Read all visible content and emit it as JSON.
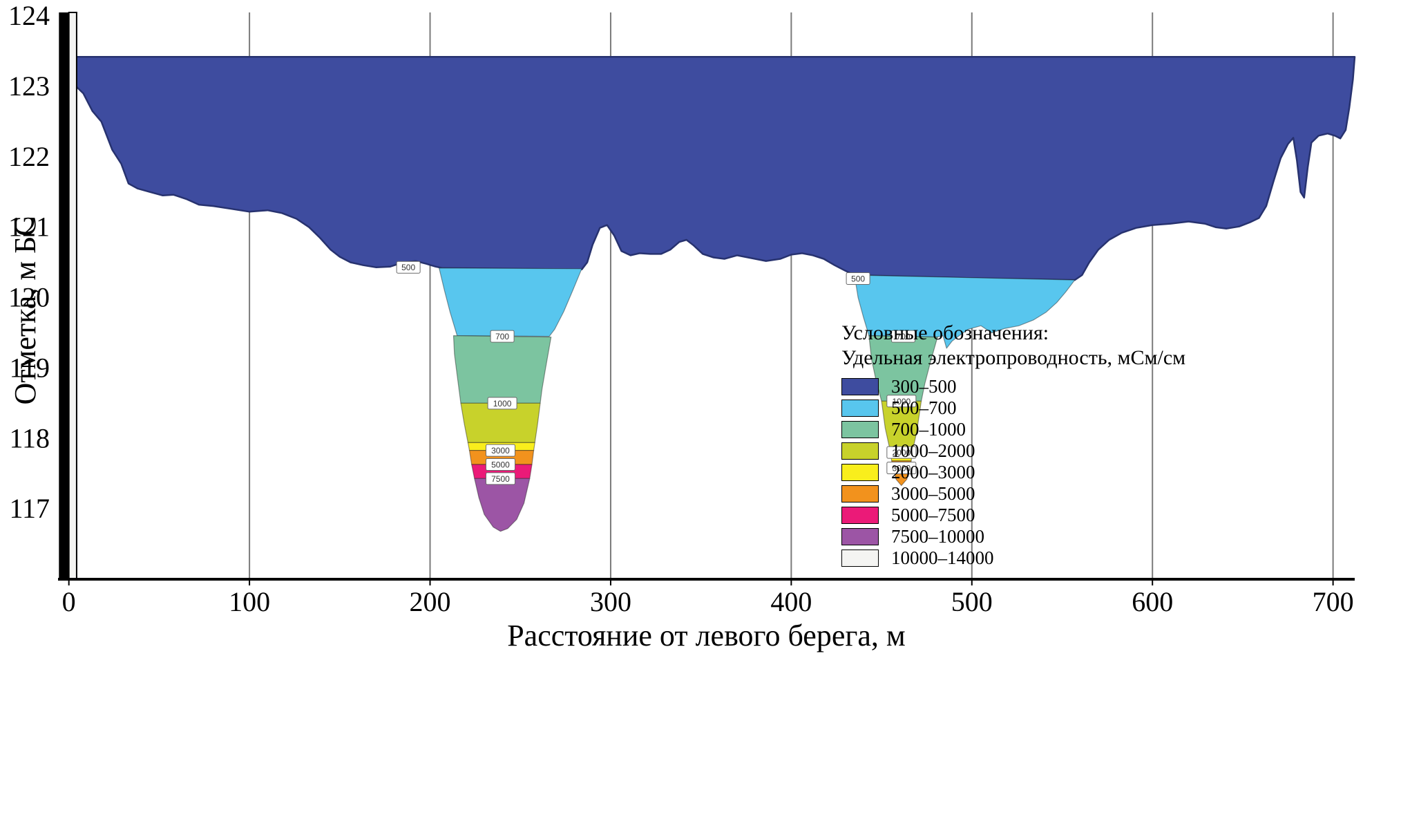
{
  "chart_data": {
    "type": "area",
    "title": "",
    "xlabel": "Расстояние от левого берега, м",
    "ylabel": "Отметка, м БС",
    "xlim": [
      -6,
      712
    ],
    "ylim": [
      116.0,
      124.05
    ],
    "x_ticks": [
      0,
      100,
      200,
      300,
      400,
      500,
      600,
      700
    ],
    "y_ticks": [
      117,
      118,
      119,
      120,
      121,
      122,
      123,
      124
    ],
    "grid": "vertical",
    "water_surface_elevation": 123.42,
    "legend": {
      "title_line1": "Условные обозначения:",
      "title_line2": "Удельная электропроводность, мСм/см",
      "entries": [
        {
          "label": "300–500",
          "color": "#3E4C9F"
        },
        {
          "label": "500–700",
          "color": "#58C6EE"
        },
        {
          "label": "700–1000",
          "color": "#7CC4A0"
        },
        {
          "label": "1000–2000",
          "color": "#C8D22B"
        },
        {
          "label": "2000–3000",
          "color": "#F9EE1C"
        },
        {
          "label": "3000–5000",
          "color": "#F2921D"
        },
        {
          "label": "5000–7500",
          "color": "#EB1A78"
        },
        {
          "label": "7500–10000",
          "color": "#9C55A5"
        },
        {
          "label": "10000–14000",
          "color": "#F4F4F2"
        }
      ]
    },
    "riverbed_profile": [
      [
        0,
        123.42
      ],
      [
        2,
        123.05
      ],
      [
        8,
        122.9
      ],
      [
        13,
        122.65
      ],
      [
        18,
        122.5
      ],
      [
        24,
        122.1
      ],
      [
        29,
        121.9
      ],
      [
        33,
        121.62
      ],
      [
        38,
        121.55
      ],
      [
        45,
        121.5
      ],
      [
        52,
        121.45
      ],
      [
        58,
        121.46
      ],
      [
        65,
        121.4
      ],
      [
        72,
        121.32
      ],
      [
        80,
        121.3
      ],
      [
        90,
        121.26
      ],
      [
        100,
        121.22
      ],
      [
        110,
        121.24
      ],
      [
        118,
        121.2
      ],
      [
        126,
        121.12
      ],
      [
        133,
        121.0
      ],
      [
        139,
        120.85
      ],
      [
        145,
        120.68
      ],
      [
        150,
        120.58
      ],
      [
        156,
        120.5
      ],
      [
        163,
        120.46
      ],
      [
        170,
        120.43
      ],
      [
        178,
        120.44
      ],
      [
        185,
        120.5
      ],
      [
        192,
        120.52
      ],
      [
        198,
        120.48
      ],
      [
        203,
        120.44
      ],
      [
        207,
        120.42
      ],
      [
        245,
        120.41
      ],
      [
        284,
        120.4
      ],
      [
        287,
        120.5
      ],
      [
        290,
        120.75
      ],
      [
        294,
        120.99
      ],
      [
        298,
        121.03
      ],
      [
        302,
        120.88
      ],
      [
        306,
        120.66
      ],
      [
        311,
        120.6
      ],
      [
        316,
        120.63
      ],
      [
        322,
        120.62
      ],
      [
        328,
        120.62
      ],
      [
        333,
        120.68
      ],
      [
        338,
        120.79
      ],
      [
        342,
        120.82
      ],
      [
        346,
        120.74
      ],
      [
        351,
        120.62
      ],
      [
        357,
        120.57
      ],
      [
        363,
        120.55
      ],
      [
        370,
        120.6
      ],
      [
        378,
        120.56
      ],
      [
        386,
        120.52
      ],
      [
        394,
        120.55
      ],
      [
        400,
        120.61
      ],
      [
        406,
        120.63
      ],
      [
        412,
        120.6
      ],
      [
        418,
        120.55
      ],
      [
        424,
        120.46
      ],
      [
        430,
        120.38
      ],
      [
        435,
        120.32
      ],
      [
        495,
        120.28
      ],
      [
        557,
        120.25
      ],
      [
        561,
        120.32
      ],
      [
        565,
        120.5
      ],
      [
        570,
        120.68
      ],
      [
        576,
        120.82
      ],
      [
        583,
        120.92
      ],
      [
        591,
        120.99
      ],
      [
        600,
        121.03
      ],
      [
        610,
        121.05
      ],
      [
        620,
        121.08
      ],
      [
        629,
        121.05
      ],
      [
        635,
        121.0
      ],
      [
        641,
        120.98
      ],
      [
        648,
        121.01
      ],
      [
        654,
        121.07
      ],
      [
        659,
        121.13
      ],
      [
        663,
        121.3
      ],
      [
        667,
        121.65
      ],
      [
        671,
        121.98
      ],
      [
        675,
        122.18
      ],
      [
        678,
        122.27
      ],
      [
        680,
        121.95
      ],
      [
        682,
        121.5
      ],
      [
        684,
        121.42
      ],
      [
        686,
        121.85
      ],
      [
        688,
        122.2
      ],
      [
        692,
        122.3
      ],
      [
        697,
        122.33
      ],
      [
        701,
        122.3
      ],
      [
        704,
        122.26
      ],
      [
        707,
        122.38
      ],
      [
        709,
        122.7
      ],
      [
        711,
        123.1
      ],
      [
        712,
        123.42
      ]
    ],
    "regions": [
      {
        "name": "pocket1-500-700",
        "color": 1,
        "points": [
          [
            205,
            120.42
          ],
          [
            284,
            120.41
          ],
          [
            279,
            120.1
          ],
          [
            274,
            119.8
          ],
          [
            269,
            119.55
          ],
          [
            266,
            119.45
          ],
          [
            215,
            119.46
          ],
          [
            211,
            119.8
          ],
          [
            208,
            120.1
          ]
        ]
      },
      {
        "name": "pocket1-700-1000",
        "color": 2,
        "points": [
          [
            213,
            119.46
          ],
          [
            267,
            119.44
          ],
          [
            264,
            119.0
          ],
          [
            262,
            118.7
          ],
          [
            261,
            118.5
          ],
          [
            217,
            118.5
          ],
          [
            215,
            118.9
          ],
          [
            213.5,
            119.2
          ]
        ]
      },
      {
        "name": "pocket1-1000-2000",
        "color": 3,
        "points": [
          [
            217,
            118.5
          ],
          [
            261,
            118.5
          ],
          [
            259.5,
            118.2
          ],
          [
            258,
            117.94
          ],
          [
            221,
            117.94
          ],
          [
            219,
            118.2
          ]
        ]
      },
      {
        "name": "pocket1-2000-3000",
        "color": 4,
        "points": [
          [
            221,
            117.94
          ],
          [
            258,
            117.94
          ],
          [
            257.4,
            117.83
          ],
          [
            221.8,
            117.83
          ]
        ]
      },
      {
        "name": "pocket1-3000-5000",
        "color": 5,
        "points": [
          [
            221.8,
            117.83
          ],
          [
            257.4,
            117.83
          ],
          [
            256.4,
            117.63
          ],
          [
            223,
            117.63
          ]
        ]
      },
      {
        "name": "pocket1-5000-7500",
        "color": 6,
        "points": [
          [
            223,
            117.63
          ],
          [
            256.4,
            117.63
          ],
          [
            255.2,
            117.43
          ],
          [
            224.6,
            117.43
          ]
        ]
      },
      {
        "name": "pocket1-7500-10000",
        "color": 7,
        "points": [
          [
            224.6,
            117.43
          ],
          [
            255.2,
            117.43
          ],
          [
            252,
            117.08
          ],
          [
            248,
            116.85
          ],
          [
            243,
            116.72
          ],
          [
            239,
            116.68
          ],
          [
            235,
            116.74
          ],
          [
            230,
            116.92
          ],
          [
            227,
            117.16
          ]
        ]
      },
      {
        "name": "pocket2-500-700",
        "color": 1,
        "points": [
          [
            435,
            120.32
          ],
          [
            557,
            120.25
          ],
          [
            552,
            120.08
          ],
          [
            547,
            119.93
          ],
          [
            541,
            119.79
          ],
          [
            534,
            119.68
          ],
          [
            526,
            119.6
          ],
          [
            518,
            119.56
          ],
          [
            511,
            119.5
          ],
          [
            505,
            119.6
          ],
          [
            498,
            119.55
          ],
          [
            493,
            119.46
          ],
          [
            489,
            119.38
          ],
          [
            486,
            119.28
          ],
          [
            484,
            119.46
          ],
          [
            481,
            119.44
          ],
          [
            443,
            119.46
          ],
          [
            440,
            119.72
          ],
          [
            437,
            120.0
          ]
        ]
      },
      {
        "name": "pocket2-700-1000",
        "color": 2,
        "points": [
          [
            443,
            119.46
          ],
          [
            481,
            119.44
          ],
          [
            477,
            119.08
          ],
          [
            474,
            118.78
          ],
          [
            472,
            118.53
          ],
          [
            450,
            118.53
          ],
          [
            447,
            118.82
          ],
          [
            444.5,
            119.12
          ]
        ]
      },
      {
        "name": "pocket2-1000-2000",
        "color": 3,
        "points": [
          [
            450,
            118.53
          ],
          [
            472,
            118.53
          ],
          [
            469.5,
            118.1
          ],
          [
            467,
            117.8
          ],
          [
            455,
            117.8
          ],
          [
            452,
            118.15
          ]
        ]
      },
      {
        "name": "pocket2-2000-3000",
        "color": 4,
        "points": [
          [
            455,
            117.8
          ],
          [
            467,
            117.8
          ],
          [
            466.4,
            117.68
          ],
          [
            455.6,
            117.68
          ]
        ]
      },
      {
        "name": "pocket2-3000-5000",
        "color": 5,
        "points": [
          [
            455.6,
            117.68
          ],
          [
            466.4,
            117.68
          ],
          [
            464,
            117.42
          ],
          [
            461,
            117.33
          ],
          [
            458,
            117.42
          ]
        ]
      }
    ],
    "left_bank_column": {
      "black_bar_x": [
        -5.5,
        0
      ],
      "white_strip_x": [
        0,
        4.3
      ],
      "white_color_index": 8
    },
    "contour_labels": [
      {
        "x": 188,
        "elev": 120.43,
        "text": "500"
      },
      {
        "x": 240,
        "elev": 119.45,
        "text": "700"
      },
      {
        "x": 240,
        "elev": 118.5,
        "text": "1000"
      },
      {
        "x": 239,
        "elev": 117.83,
        "text": "3000"
      },
      {
        "x": 239,
        "elev": 117.63,
        "text": "5000"
      },
      {
        "x": 239,
        "elev": 117.43,
        "text": "7500"
      },
      {
        "x": 437,
        "elev": 120.27,
        "text": "500"
      },
      {
        "x": 462,
        "elev": 119.45,
        "text": "700"
      },
      {
        "x": 461,
        "elev": 118.53,
        "text": "1000"
      },
      {
        "x": 461,
        "elev": 117.8,
        "text": "2000"
      },
      {
        "x": 461,
        "elev": 117.58,
        "text": "3000"
      }
    ]
  }
}
